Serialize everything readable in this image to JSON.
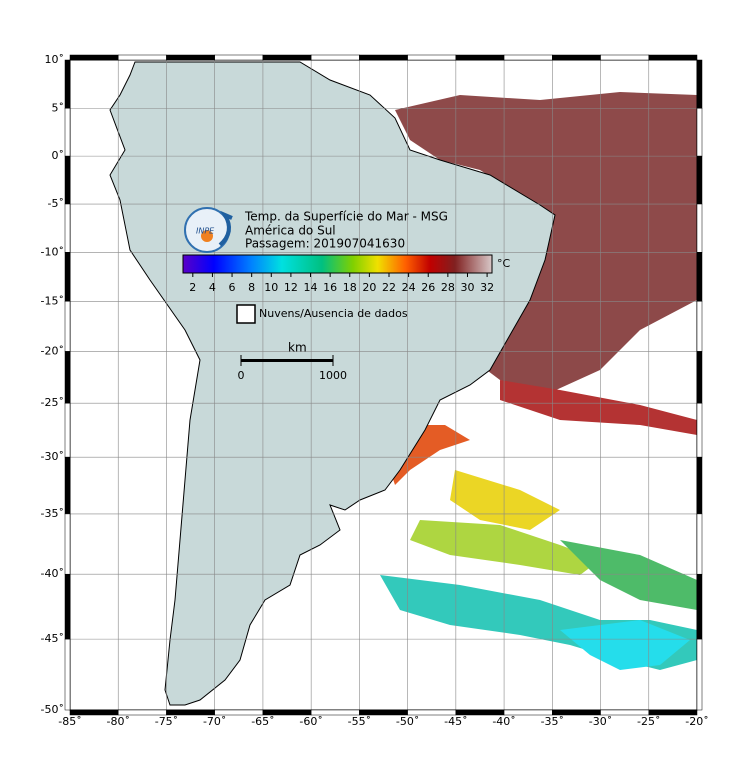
{
  "map": {
    "title_lines": [
      "Temp. da Superfície do Mar - MSG",
      "América do Sul",
      "Passagem: 201907041630"
    ],
    "logo_text": "INPE",
    "colorbar": {
      "range": [
        1,
        32.5
      ],
      "ticks": [
        2,
        4,
        6,
        8,
        10,
        12,
        14,
        16,
        18,
        20,
        22,
        24,
        26,
        28,
        30,
        32
      ],
      "unit": "°C"
    },
    "nodata_label": "Nuvens/Ausencia de dados",
    "scale": {
      "unit": "km",
      "ticks": [
        0,
        1000
      ]
    },
    "lon_range": [
      -85,
      -20
    ],
    "lat_range": [
      -50,
      10
    ],
    "lon_ticks": [
      {
        "value": -85,
        "label": "-85˚"
      },
      {
        "value": -80,
        "label": "-80˚"
      },
      {
        "value": -75,
        "label": "-75˚"
      },
      {
        "value": -70,
        "label": "-70˚"
      },
      {
        "value": -65,
        "label": "-65˚"
      },
      {
        "value": -60,
        "label": "-60˚"
      },
      {
        "value": -55,
        "label": "-55˚"
      },
      {
        "value": -50,
        "label": "-50˚"
      },
      {
        "value": -45,
        "label": "-45˚"
      },
      {
        "value": -40,
        "label": "-40˚"
      },
      {
        "value": -35,
        "label": "-35˚"
      },
      {
        "value": -30,
        "label": "-30˚"
      },
      {
        "value": -25,
        "label": "-25˚"
      },
      {
        "value": -20,
        "label": "-20˚"
      }
    ],
    "lat_ticks": [
      {
        "value": 10,
        "label": "10˚"
      },
      {
        "value": 5,
        "label": "5˚"
      },
      {
        "value": 0,
        "label": "0˚"
      },
      {
        "value": -5,
        "label": "-5˚"
      },
      {
        "value": -10,
        "label": "-10˚"
      },
      {
        "value": -15,
        "label": "-15˚"
      },
      {
        "value": -20,
        "label": "-20˚"
      },
      {
        "value": -25,
        "label": "-25˚"
      },
      {
        "value": -30,
        "label": "-30˚"
      },
      {
        "value": -35,
        "label": "-35˚"
      },
      {
        "value": -40,
        "label": "-40˚"
      },
      {
        "value": -45,
        "label": "-45˚"
      },
      {
        "value": -50,
        "label": "-50˚"
      }
    ]
  }
}
